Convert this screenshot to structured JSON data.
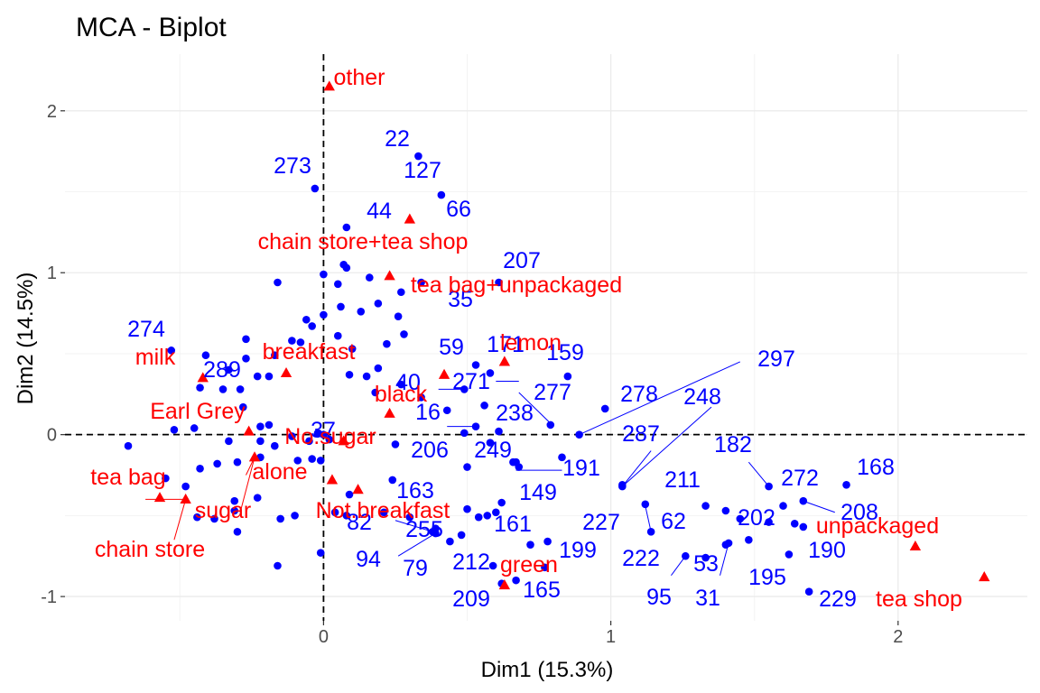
{
  "chart_data": {
    "type": "scatter",
    "title": "MCA - Biplot",
    "xlabel": "Dim1 (15.3%)",
    "ylabel": "Dim2 (14.5%)",
    "xlim": [
      -0.9,
      2.45
    ],
    "ylim": [
      -1.15,
      2.35
    ],
    "xticks": [
      0,
      1,
      2
    ],
    "yticks": [
      -1,
      0,
      1,
      2
    ],
    "grid": true,
    "reference_lines": {
      "x": 0,
      "y": 0,
      "style": "dashed"
    },
    "colors": {
      "individuals": "#0000ff",
      "variables": "#ff0000",
      "grid": "#ebebeb",
      "tick": "#4d4d4d"
    },
    "variables": [
      {
        "label": "other",
        "x": 0.02,
        "y": 2.15
      },
      {
        "label": "chain store+tea shop",
        "x": 0.3,
        "y": 1.33
      },
      {
        "label": "tea bag+unpackaged",
        "x": 0.23,
        "y": 0.98
      },
      {
        "label": "lemon",
        "x": 0.63,
        "y": 0.45
      },
      {
        "label": "milk",
        "x": -0.42,
        "y": 0.35
      },
      {
        "label": "breakfast",
        "x": -0.13,
        "y": 0.38
      },
      {
        "label": "black",
        "x": 0.23,
        "y": 0.13
      },
      {
        "label": "Earl Grey",
        "x": -0.26,
        "y": 0.02
      },
      {
        "label": "No.sugar",
        "x": 0.07,
        "y": -0.04
      },
      {
        "label": "alone",
        "x": 0.03,
        "y": -0.28
      },
      {
        "label": "tea bag",
        "x": -0.57,
        "y": -0.39
      },
      {
        "label": "sugar",
        "x": -0.24,
        "y": -0.14
      },
      {
        "label": "chain store",
        "x": -0.48,
        "y": -0.4
      },
      {
        "label": "Not.breakfast",
        "x": 0.12,
        "y": -0.34
      },
      {
        "label": "green",
        "x": 0.63,
        "y": -0.93
      },
      {
        "label": "unpackaged",
        "x": 2.06,
        "y": -0.69
      },
      {
        "label": "tea shop",
        "x": 2.3,
        "y": -0.88
      },
      {
        "label": "",
        "x": 0.42,
        "y": 0.37
      }
    ],
    "individuals": [
      {
        "label": "22",
        "x": 0.33,
        "y": 1.72
      },
      {
        "label": "127",
        "x": 0.41,
        "y": 1.48
      },
      {
        "label": "273",
        "x": -0.03,
        "y": 1.52
      },
      {
        "label": "44",
        "x": 0.08,
        "y": 1.28
      },
      {
        "label": "207",
        "x": 0.61,
        "y": 0.94
      },
      {
        "label": "35",
        "x": 0.34,
        "y": 0.94
      },
      {
        "label": "274",
        "x": -0.53,
        "y": 0.52
      },
      {
        "label": "289",
        "x": -0.41,
        "y": 0.49
      },
      {
        "label": "59",
        "x": 0.53,
        "y": 0.43
      },
      {
        "label": "171",
        "x": 0.58,
        "y": 0.38
      },
      {
        "label": "159",
        "x": 0.85,
        "y": 0.36
      },
      {
        "label": "297",
        "x": 0.89,
        "y": 0.0
      },
      {
        "label": "40",
        "x": 0.49,
        "y": 0.28
      },
      {
        "label": "271",
        "x": 0.56,
        "y": 0.18
      },
      {
        "label": "277",
        "x": 0.79,
        "y": 0.06
      },
      {
        "label": "278",
        "x": 0.98,
        "y": 0.16
      },
      {
        "label": "248",
        "x": 1.04,
        "y": -0.32
      },
      {
        "label": "16",
        "x": 0.43,
        "y": 0.15
      },
      {
        "label": "238",
        "x": 0.61,
        "y": 0.02
      },
      {
        "label": "37",
        "x": -0.02,
        "y": 0.01
      },
      {
        "label": "206",
        "x": 0.53,
        "y": 0.05
      },
      {
        "label": "249",
        "x": 0.67,
        "y": -0.17
      },
      {
        "label": "191",
        "x": 0.83,
        "y": -0.14
      },
      {
        "label": "287",
        "x": 1.04,
        "y": -0.31
      },
      {
        "label": "182",
        "x": 1.55,
        "y": -0.32
      },
      {
        "label": "168",
        "x": 1.82,
        "y": -0.31
      },
      {
        "label": "272",
        "x": 1.6,
        "y": -0.44
      },
      {
        "label": "208",
        "x": 1.67,
        "y": -0.41
      },
      {
        "label": "163",
        "x": 0.24,
        "y": -0.28
      },
      {
        "label": "149",
        "x": 0.62,
        "y": -0.42
      },
      {
        "label": "211",
        "x": 1.33,
        "y": -0.44
      },
      {
        "label": "82",
        "x": 0.08,
        "y": -0.5
      },
      {
        "label": "255",
        "x": 0.38,
        "y": -0.6
      },
      {
        "label": "161",
        "x": 0.57,
        "y": -0.5
      },
      {
        "label": "227",
        "x": 1.12,
        "y": -0.43
      },
      {
        "label": "62",
        "x": 1.4,
        "y": -0.47
      },
      {
        "label": "202",
        "x": 1.55,
        "y": -0.54
      },
      {
        "label": "190",
        "x": 1.67,
        "y": -0.57
      },
      {
        "label": "94",
        "x": 0.39,
        "y": -0.61
      },
      {
        "label": "79",
        "x": 0.44,
        "y": -0.66
      },
      {
        "label": "212",
        "x": 0.72,
        "y": -0.68
      },
      {
        "label": "199",
        "x": 0.78,
        "y": -0.66
      },
      {
        "label": "222",
        "x": 1.14,
        "y": -0.6
      },
      {
        "label": "53",
        "x": 1.33,
        "y": -0.76
      },
      {
        "label": "195",
        "x": 1.62,
        "y": -0.74
      },
      {
        "label": "209",
        "x": 0.62,
        "y": -0.92
      },
      {
        "label": "165",
        "x": 0.67,
        "y": -0.9
      },
      {
        "label": "95",
        "x": 1.26,
        "y": -0.75
      },
      {
        "label": "31",
        "x": 1.41,
        "y": -0.67
      },
      {
        "label": "229",
        "x": 1.69,
        "y": -0.97
      },
      {
        "label": "66",
        "x": 0.0,
        "y": 0.0
      },
      {
        "label": "",
        "x": 0.08,
        "y": 1.03
      },
      {
        "label": "",
        "x": 0.16,
        "y": 0.97
      },
      {
        "label": "",
        "x": 0.27,
        "y": 0.88
      },
      {
        "label": "",
        "x": -0.16,
        "y": 0.94
      },
      {
        "label": "",
        "x": 0.0,
        "y": 0.99
      },
      {
        "label": "",
        "x": 0.05,
        "y": 0.93
      },
      {
        "label": "",
        "x": 0.07,
        "y": 1.05
      },
      {
        "label": "",
        "x": 0.19,
        "y": 0.81
      },
      {
        "label": "",
        "x": 0.26,
        "y": 0.73
      },
      {
        "label": "",
        "x": 0.28,
        "y": 0.62
      },
      {
        "label": "",
        "x": 0.22,
        "y": 0.56
      },
      {
        "label": "",
        "x": -0.06,
        "y": 0.71
      },
      {
        "label": "",
        "x": -0.04,
        "y": 0.67
      },
      {
        "label": "",
        "x": 0.0,
        "y": 0.74
      },
      {
        "label": "",
        "x": 0.06,
        "y": 0.79
      },
      {
        "label": "",
        "x": 0.13,
        "y": 0.76
      },
      {
        "label": "",
        "x": 0.05,
        "y": 0.61
      },
      {
        "label": "",
        "x": -0.11,
        "y": 0.58
      },
      {
        "label": "",
        "x": -0.17,
        "y": 0.49
      },
      {
        "label": "",
        "x": -0.08,
        "y": 0.57
      },
      {
        "label": "",
        "x": 0.1,
        "y": 0.53
      },
      {
        "label": "",
        "x": 0.09,
        "y": 0.37
      },
      {
        "label": "",
        "x": 0.15,
        "y": 0.36
      },
      {
        "label": "",
        "x": 0.19,
        "y": 0.41
      },
      {
        "label": "",
        "x": 0.18,
        "y": 0.26
      },
      {
        "label": "",
        "x": 0.27,
        "y": 0.31
      },
      {
        "label": "",
        "x": 0.34,
        "y": 0.23
      },
      {
        "label": "",
        "x": -0.27,
        "y": 0.59
      },
      {
        "label": "",
        "x": -0.27,
        "y": 0.47
      },
      {
        "label": "",
        "x": -0.33,
        "y": 0.4
      },
      {
        "label": "",
        "x": -0.23,
        "y": 0.36
      },
      {
        "label": "",
        "x": -0.19,
        "y": 0.36
      },
      {
        "label": "",
        "x": -0.35,
        "y": 0.28
      },
      {
        "label": "",
        "x": -0.29,
        "y": 0.28
      },
      {
        "label": "",
        "x": -0.43,
        "y": 0.29
      },
      {
        "label": "",
        "x": -0.28,
        "y": 0.17
      },
      {
        "label": "",
        "x": -0.19,
        "y": 0.06
      },
      {
        "label": "",
        "x": -0.45,
        "y": 0.04
      },
      {
        "label": "",
        "x": -0.52,
        "y": 0.03
      },
      {
        "label": "",
        "x": -0.33,
        "y": -0.04
      },
      {
        "label": "",
        "x": -0.22,
        "y": 0.05
      },
      {
        "label": "",
        "x": -0.22,
        "y": -0.04
      },
      {
        "label": "",
        "x": -0.17,
        "y": -0.07
      },
      {
        "label": "",
        "x": -0.11,
        "y": -0.01
      },
      {
        "label": "",
        "x": -0.05,
        "y": -0.04
      },
      {
        "label": "",
        "x": 0.02,
        "y": -0.03
      },
      {
        "label": "",
        "x": -0.68,
        "y": -0.07
      },
      {
        "label": "",
        "x": -0.43,
        "y": -0.21
      },
      {
        "label": "",
        "x": -0.37,
        "y": -0.18
      },
      {
        "label": "",
        "x": -0.3,
        "y": -0.17
      },
      {
        "label": "",
        "x": -0.22,
        "y": -0.14
      },
      {
        "label": "",
        "x": -0.09,
        "y": -0.16
      },
      {
        "label": "",
        "x": -0.04,
        "y": -0.15
      },
      {
        "label": "",
        "x": -0.01,
        "y": -0.16
      },
      {
        "label": "",
        "x": 0.25,
        "y": -0.06
      },
      {
        "label": "",
        "x": -0.55,
        "y": -0.27
      },
      {
        "label": "",
        "x": -0.48,
        "y": -0.32
      },
      {
        "label": "",
        "x": -0.31,
        "y": -0.41
      },
      {
        "label": "",
        "x": -0.23,
        "y": -0.39
      },
      {
        "label": "",
        "x": -0.31,
        "y": -0.47
      },
      {
        "label": "",
        "x": -0.44,
        "y": -0.51
      },
      {
        "label": "",
        "x": -0.38,
        "y": -0.52
      },
      {
        "label": "",
        "x": -0.3,
        "y": -0.6
      },
      {
        "label": "",
        "x": -0.15,
        "y": -0.52
      },
      {
        "label": "",
        "x": -0.1,
        "y": -0.5
      },
      {
        "label": "",
        "x": -0.16,
        "y": -0.81
      },
      {
        "label": "",
        "x": -0.01,
        "y": -0.73
      },
      {
        "label": "",
        "x": 0.04,
        "y": -0.48
      },
      {
        "label": "",
        "x": 0.09,
        "y": -0.37
      },
      {
        "label": "",
        "x": 0.21,
        "y": -0.48
      },
      {
        "label": "",
        "x": 0.3,
        "y": -0.51
      },
      {
        "label": "",
        "x": 0.39,
        "y": -0.58
      },
      {
        "label": "",
        "x": 0.48,
        "y": -0.62
      },
      {
        "label": "",
        "x": 0.54,
        "y": -0.51
      },
      {
        "label": "",
        "x": 0.5,
        "y": -0.46
      },
      {
        "label": "",
        "x": 0.59,
        "y": -0.81
      },
      {
        "label": "",
        "x": 0.77,
        "y": -0.82
      },
      {
        "label": "",
        "x": 0.6,
        "y": -0.48
      },
      {
        "label": "",
        "x": 0.68,
        "y": -0.2
      },
      {
        "label": "",
        "x": 0.66,
        "y": -0.17
      },
      {
        "label": "",
        "x": 1.45,
        "y": -0.52
      },
      {
        "label": "",
        "x": 1.48,
        "y": -0.65
      },
      {
        "label": "",
        "x": 1.4,
        "y": -0.68
      },
      {
        "label": "",
        "x": 1.64,
        "y": -0.55
      },
      {
        "label": "",
        "x": 0.49,
        "y": 0.01
      },
      {
        "label": "",
        "x": 0.5,
        "y": -0.2
      },
      {
        "label": "",
        "x": 0.58,
        "y": -0.05
      }
    ],
    "connectors": [
      {
        "from": [
          0.6,
          0.33
        ],
        "to": [
          0.68,
          0.33
        ]
      },
      {
        "from": [
          0.89,
          0.0
        ],
        "to": [
          1.45,
          0.45
        ]
      },
      {
        "from": [
          0.68,
          0.26
        ],
        "to": [
          0.79,
          0.07
        ]
      },
      {
        "from": [
          1.04,
          -0.32
        ],
        "to": [
          1.35,
          0.17
        ]
      },
      {
        "from": [
          1.04,
          -0.32
        ],
        "to": [
          1.14,
          -0.1
        ]
      },
      {
        "from": [
          0.4,
          0.28
        ],
        "to": [
          0.49,
          0.28
        ]
      },
      {
        "from": [
          0.43,
          0.05
        ],
        "to": [
          0.53,
          0.05
        ]
      },
      {
        "from": [
          0.67,
          -0.22
        ],
        "to": [
          0.83,
          -0.22
        ]
      },
      {
        "from": [
          1.55,
          -0.32
        ],
        "to": [
          1.48,
          -0.17
        ]
      },
      {
        "from": [
          1.67,
          -0.41
        ],
        "to": [
          1.78,
          -0.48
        ]
      },
      {
        "from": [
          0.25,
          -0.53
        ],
        "to": [
          0.38,
          -0.6
        ]
      },
      {
        "from": [
          0.26,
          -0.75
        ],
        "to": [
          0.38,
          -0.62
        ]
      },
      {
        "from": [
          1.14,
          -0.6
        ],
        "to": [
          1.12,
          -0.44
        ]
      },
      {
        "from": [
          1.21,
          -0.87
        ],
        "to": [
          1.26,
          -0.75
        ]
      },
      {
        "from": [
          1.38,
          -0.87
        ],
        "to": [
          1.41,
          -0.67
        ]
      },
      {
        "from": [
          -0.62,
          -0.4
        ],
        "to": [
          -0.48,
          -0.4
        ]
      },
      {
        "from": [
          -0.52,
          -0.65
        ],
        "to": [
          -0.48,
          -0.4
        ]
      },
      {
        "from": [
          -0.29,
          -0.48
        ],
        "to": [
          -0.24,
          -0.14
        ]
      },
      {
        "from": [
          -0.27,
          -0.25
        ],
        "to": [
          -0.24,
          -0.14
        ]
      }
    ]
  }
}
